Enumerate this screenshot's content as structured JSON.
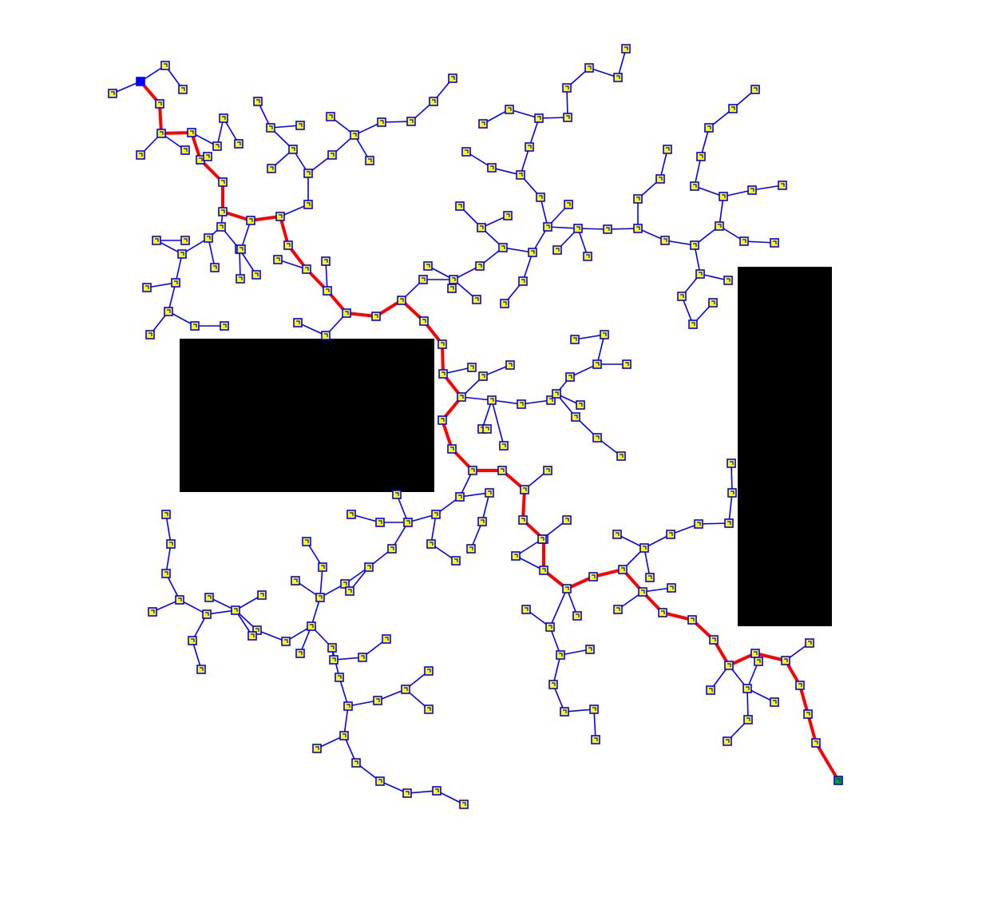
{
  "diagram": {
    "type": "rrt-tree",
    "colors": {
      "background": "#ffffff",
      "tree_edge": "#0000ff",
      "node_fill": "#ffff00",
      "node_stroke": "#0000ff",
      "solution_path": "#ff0000",
      "start_node": "#0000ff",
      "goal_node": "#00aa00",
      "obstacle": "#000000"
    },
    "obstacles": 2,
    "node_count": 230
  }
}
